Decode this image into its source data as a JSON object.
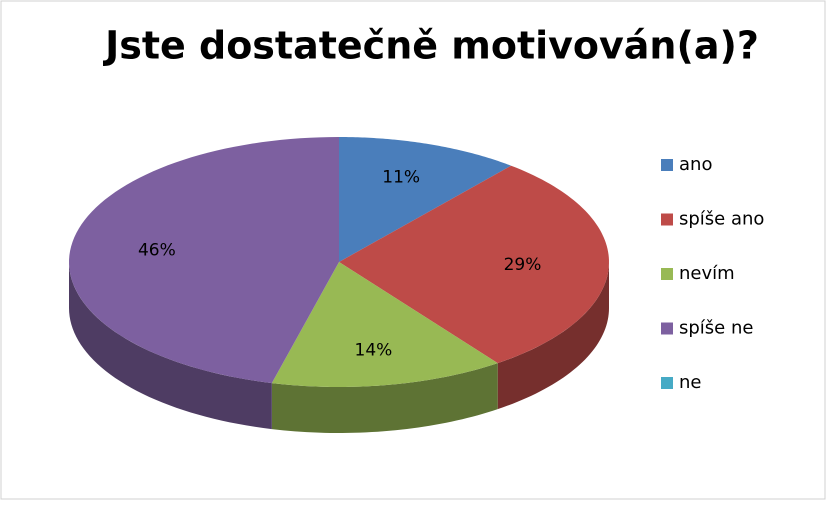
{
  "chart_data": {
    "type": "pie",
    "title": "Jste dostatečně motivován(a)?",
    "categories": [
      "ano",
      "spíše ano",
      "nevím",
      "spíše ne",
      "ne"
    ],
    "values": [
      11,
      29,
      14,
      46,
      0
    ],
    "value_labels": [
      "11%",
      "29%",
      "14%",
      "46%",
      null
    ],
    "colors": [
      "#4a7ebb",
      "#be4b48",
      "#98b954",
      "#7d60a0",
      "#46aac5"
    ],
    "legend": "right",
    "three_d": true
  }
}
